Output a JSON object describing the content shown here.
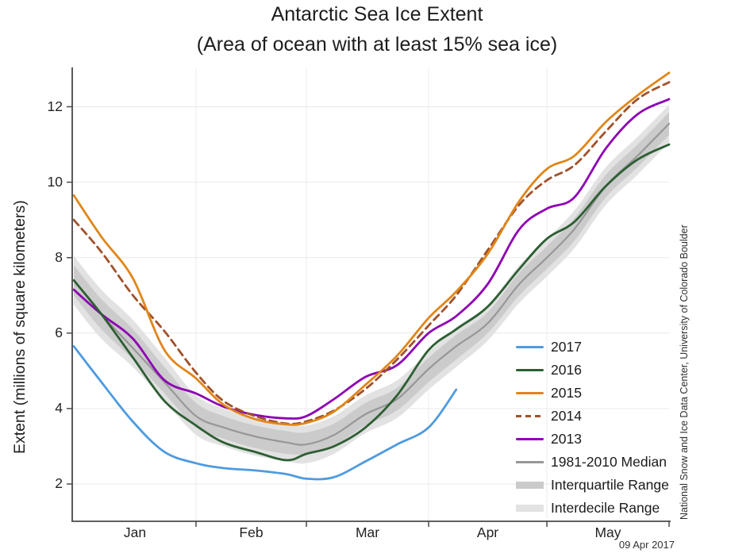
{
  "title": {
    "line1": "Antarctic Sea Ice Extent",
    "line2": "(Area of ocean with at least 15% sea ice)"
  },
  "y_axis": {
    "label": "Extent (millions of square kilometers)",
    "ticks": [
      2,
      4,
      6,
      8,
      10,
      12
    ]
  },
  "x_axis": {
    "month_labels": [
      "Jan",
      "Feb",
      "Mar",
      "Apr",
      "May"
    ],
    "month_start_days": [
      0,
      31,
      59,
      90,
      120,
      151
    ],
    "month_label_days": [
      15.5,
      45,
      74.5,
      105,
      135.5
    ]
  },
  "legend": {
    "items": [
      {
        "label": "2017",
        "color": "#4E9BDF",
        "swatch": "line"
      },
      {
        "label": "2016",
        "color": "#2D5E33",
        "swatch": "line"
      },
      {
        "label": "2015",
        "color": "#E08619",
        "swatch": "line"
      },
      {
        "label": "2014",
        "color": "#A0512B",
        "swatch": "dashed-line"
      },
      {
        "label": "2013",
        "color": "#8E00B3",
        "swatch": "line"
      },
      {
        "label": "1981-2010 Median",
        "color": "#979797",
        "swatch": "thin-line"
      },
      {
        "label": "Interquartile Range",
        "color": "#CBCBCB",
        "swatch": "band"
      },
      {
        "label": "Interdecile Range",
        "color": "#E2E2E2",
        "swatch": "band"
      }
    ]
  },
  "attribution": "National Snow and Ice Data Center, University of Colorado Boulder",
  "date_stamp": "09 Apr 2017",
  "colors": {
    "grid": "#E9E9E9",
    "axis": "#5a5a5a",
    "background": "#ffffff"
  },
  "chart_data": {
    "type": "line",
    "title": "Antarctic Sea Ice Extent",
    "subtitle": "(Area of ocean with at least 15% sea ice)",
    "xlabel": "",
    "ylabel": "Extent (millions of square kilometers)",
    "ylim": [
      1.0,
      13.1
    ],
    "x_range_days": [
      0,
      151
    ],
    "grid": true,
    "legend_position": "inside-right",
    "x_dates": [
      "Jan 1",
      "Jan 8",
      "Jan 16",
      "Jan 24",
      "Feb 1",
      "Feb 8",
      "Feb 16",
      "Feb 24",
      "Mar 1",
      "Mar 8",
      "Mar 16",
      "Mar 24",
      "Apr 1",
      "Apr 8",
      "Apr 16",
      "Apr 24",
      "May 1",
      "May 8",
      "May 16",
      "May 24",
      "Jun 1"
    ],
    "x_days": [
      0,
      7,
      15,
      23,
      31,
      38,
      46,
      54,
      59,
      66,
      74,
      82,
      90,
      97,
      105,
      113,
      120,
      127,
      135,
      143,
      151
    ],
    "series": [
      {
        "name": "2017",
        "color": "#4E9BDF",
        "style": "solid",
        "width": 2.8,
        "values": [
          5.65,
          4.7,
          3.65,
          2.85,
          2.55,
          2.42,
          2.36,
          2.26,
          2.14,
          2.18,
          2.6,
          3.05,
          3.5,
          4.5
        ]
      },
      {
        "name": "2016",
        "color": "#2D5E33",
        "style": "solid",
        "width": 2.8,
        "values": [
          7.4,
          6.5,
          5.35,
          4.2,
          3.55,
          3.1,
          2.85,
          2.63,
          2.8,
          3.0,
          3.5,
          4.35,
          5.55,
          6.1,
          6.7,
          7.7,
          8.5,
          8.95,
          9.9,
          10.6,
          11.0
        ]
      },
      {
        "name": "2015",
        "color": "#E08619",
        "style": "solid",
        "width": 2.8,
        "values": [
          9.65,
          8.55,
          7.45,
          5.55,
          4.8,
          4.1,
          3.72,
          3.58,
          3.62,
          3.92,
          4.63,
          5.4,
          6.4,
          7.1,
          8.1,
          9.5,
          10.35,
          10.7,
          11.6,
          12.3,
          12.9
        ]
      },
      {
        "name": "2014",
        "color": "#A0512B",
        "style": "dashed",
        "width": 2.8,
        "values": [
          9.0,
          8.15,
          7.0,
          6.05,
          4.95,
          4.2,
          3.8,
          3.6,
          3.66,
          3.95,
          4.52,
          5.3,
          6.2,
          7.0,
          8.2,
          9.4,
          10.05,
          10.45,
          11.35,
          12.2,
          12.65
        ]
      },
      {
        "name": "2013",
        "color": "#8E00B3",
        "style": "solid",
        "width": 2.8,
        "values": [
          7.15,
          6.5,
          5.85,
          4.75,
          4.4,
          4.05,
          3.83,
          3.74,
          3.8,
          4.25,
          4.84,
          5.15,
          6.0,
          6.45,
          7.3,
          8.75,
          9.3,
          9.6,
          10.9,
          11.8,
          12.2
        ]
      },
      {
        "name": "1981-2010 Median",
        "color": "#979797",
        "style": "solid",
        "width": 2.2,
        "values": [
          7.4,
          6.5,
          5.6,
          4.7,
          3.8,
          3.5,
          3.26,
          3.1,
          3.05,
          3.3,
          3.85,
          4.25,
          5.05,
          5.65,
          6.26,
          7.3,
          8.0,
          8.76,
          9.9,
          10.7,
          11.55
        ]
      }
    ],
    "bands": [
      {
        "name": "Interdecile Range",
        "color": "#E2E2E2",
        "low": [
          6.75,
          5.85,
          5.1,
          4.2,
          3.3,
          3.0,
          2.75,
          2.6,
          2.55,
          2.8,
          3.35,
          3.75,
          4.5,
          5.1,
          5.8,
          6.8,
          7.5,
          8.25,
          9.4,
          10.2,
          11.05
        ],
        "high": [
          8.05,
          7.15,
          6.35,
          5.35,
          4.35,
          4.0,
          3.75,
          3.6,
          3.55,
          3.8,
          4.35,
          4.75,
          5.5,
          6.15,
          6.75,
          7.8,
          8.5,
          9.25,
          10.4,
          11.2,
          12.05
        ]
      },
      {
        "name": "Interquartile Range",
        "color": "#CBCBCB",
        "low": [
          7.0,
          6.1,
          5.3,
          4.4,
          3.5,
          3.2,
          2.95,
          2.8,
          2.8,
          3.0,
          3.55,
          3.95,
          4.7,
          5.3,
          6.0,
          7.0,
          7.7,
          8.45,
          9.6,
          10.4,
          11.25
        ],
        "high": [
          7.8,
          6.9,
          6.1,
          5.1,
          4.15,
          3.8,
          3.55,
          3.4,
          3.37,
          3.6,
          4.15,
          4.55,
          5.35,
          5.95,
          6.55,
          7.6,
          8.3,
          9.05,
          10.2,
          11.0,
          11.85
        ]
      }
    ]
  }
}
